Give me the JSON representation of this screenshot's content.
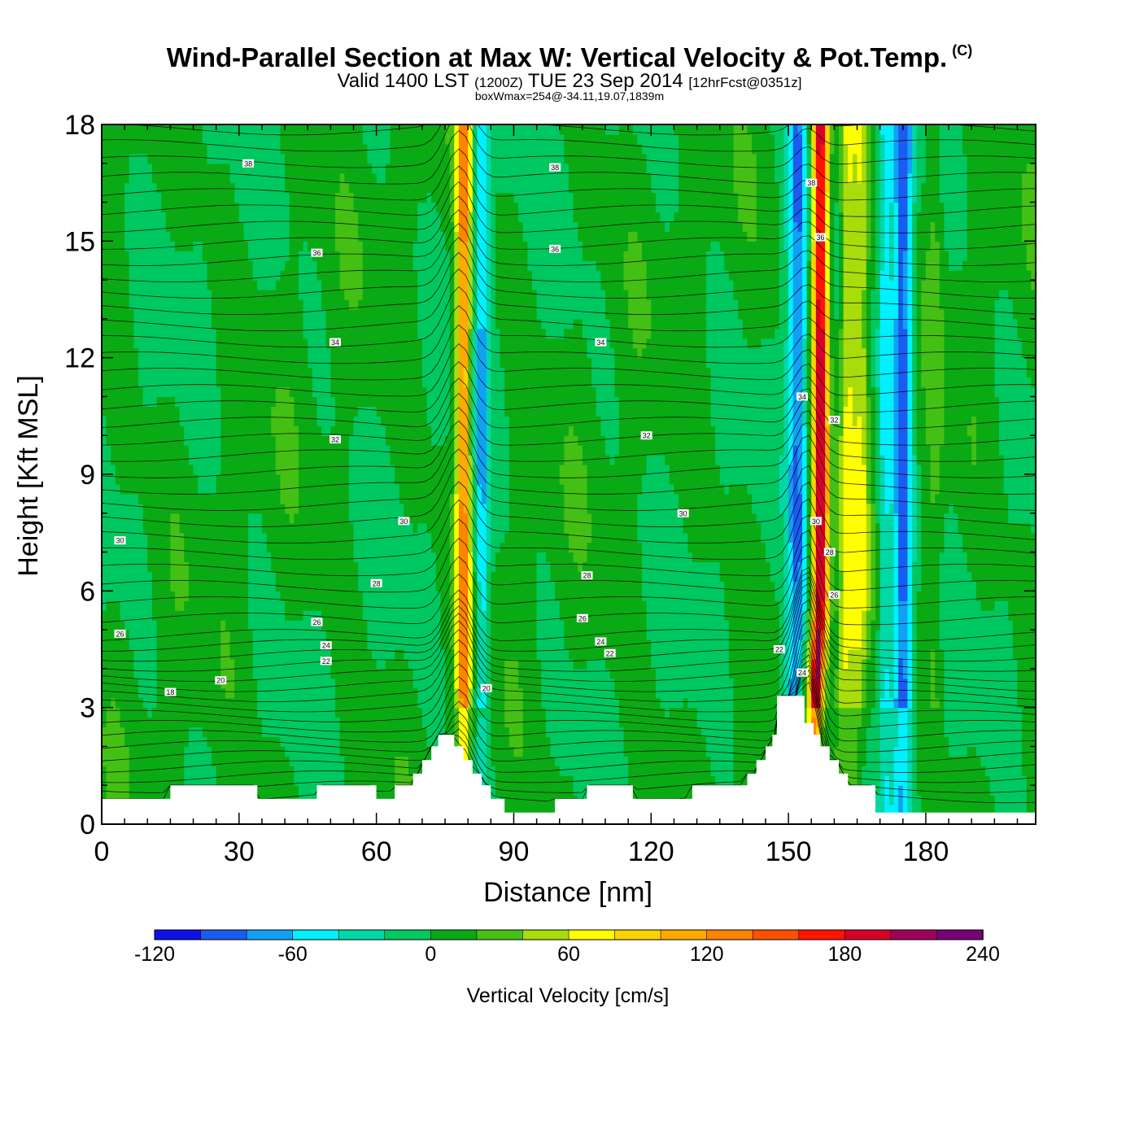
{
  "header": {
    "title": "Wind-Parallel Section at Max W: Vertical Velocity & Pot.Temp.",
    "copyright": "(C)",
    "valid_prefix": "Valid 1400 LST",
    "utc": "(1200Z)",
    "valid_date": "TUE 23 Sep 2014",
    "forecast": "[12hrFcst@0351z]",
    "boxinfo": "boxWmax=254@-34.11,19.07,1839m"
  },
  "chart_data": {
    "type": "heatmap",
    "xlabel": "Distance [nm]",
    "ylabel": "Height [Kft MSL]",
    "xlim": [
      0,
      204
    ],
    "ylim": [
      0,
      18
    ],
    "x_ticks": [
      0,
      30,
      60,
      90,
      120,
      150,
      180
    ],
    "y_ticks": [
      0,
      3,
      6,
      9,
      12,
      15,
      18
    ],
    "colorbar": {
      "label": "Vertical Velocity [cm/s]",
      "ticks": [
        -120,
        -60,
        0,
        60,
        120,
        180,
        240
      ],
      "levels": [
        -120,
        -100,
        -80,
        -60,
        -40,
        -20,
        0,
        20,
        40,
        60,
        80,
        100,
        120,
        140,
        160,
        180,
        200,
        220,
        240
      ],
      "colors": [
        "#1010e8",
        "#1a5cf0",
        "#12a0f5",
        "#00f0ff",
        "#00d8a8",
        "#00c860",
        "#0aaa14",
        "#44c014",
        "#a8dc0a",
        "#ffff00",
        "#ffd200",
        "#ffaa00",
        "#ff8200",
        "#ff5000",
        "#ff1400",
        "#d80028",
        "#a0005a",
        "#780078"
      ]
    },
    "terrain_kft": [
      [
        0,
        0.65
      ],
      [
        15,
        0.65
      ],
      [
        15,
        1.0
      ],
      [
        34,
        1.0
      ],
      [
        34,
        0.65
      ],
      [
        47,
        0.65
      ],
      [
        47,
        1.0
      ],
      [
        60,
        1.0
      ],
      [
        60,
        0.65
      ],
      [
        64,
        0.65
      ],
      [
        64,
        1.0
      ],
      [
        68,
        1.0
      ],
      [
        68,
        1.3
      ],
      [
        70,
        1.3
      ],
      [
        70,
        1.65
      ],
      [
        72,
        1.65
      ],
      [
        72,
        2.0
      ],
      [
        73.5,
        2.0
      ],
      [
        73.5,
        2.3
      ],
      [
        77,
        2.3
      ],
      [
        77,
        2.0
      ],
      [
        79,
        2.0
      ],
      [
        79,
        1.65
      ],
      [
        81,
        1.65
      ],
      [
        81,
        1.3
      ],
      [
        83,
        1.3
      ],
      [
        83,
        1.0
      ],
      [
        85,
        1.0
      ],
      [
        85,
        0.65
      ],
      [
        88,
        0.65
      ],
      [
        88,
        0.3
      ],
      [
        99,
        0.3
      ],
      [
        99,
        0.65
      ],
      [
        106,
        0.65
      ],
      [
        106,
        1.0
      ],
      [
        116,
        1.0
      ],
      [
        116,
        0.65
      ],
      [
        129,
        0.65
      ],
      [
        129,
        1.0
      ],
      [
        141,
        1.0
      ],
      [
        141,
        1.3
      ],
      [
        143,
        1.3
      ],
      [
        143,
        1.65
      ],
      [
        145,
        1.65
      ],
      [
        145,
        2.0
      ],
      [
        146.5,
        2.0
      ],
      [
        146.5,
        2.3
      ],
      [
        147.5,
        2.3
      ],
      [
        147.5,
        3.3
      ],
      [
        153.5,
        3.3
      ],
      [
        153.5,
        2.6
      ],
      [
        155.5,
        2.6
      ],
      [
        155.5,
        2.3
      ],
      [
        157,
        2.3
      ],
      [
        157,
        2.0
      ],
      [
        159,
        2.0
      ],
      [
        159,
        1.65
      ],
      [
        161,
        1.65
      ],
      [
        161,
        1.3
      ],
      [
        163,
        1.3
      ],
      [
        163,
        1.0
      ],
      [
        169,
        1.0
      ],
      [
        169,
        0.3
      ],
      [
        204,
        0.3
      ]
    ],
    "w_features": [
      {
        "x": 79,
        "w": 1.6,
        "amp": 120
      },
      {
        "x": 83,
        "w": 1.6,
        "amp": -60
      },
      {
        "x": 152,
        "w": 2.2,
        "amp": -85
      },
      {
        "x": 157,
        "w": 1.7,
        "amp": 200
      },
      {
        "x": 163,
        "w": 1.9,
        "amp": 60
      },
      {
        "x": 166,
        "w": 1.6,
        "amp": 45
      },
      {
        "x": 171,
        "w": 1.5,
        "amp": -45
      },
      {
        "x": 175,
        "w": 2.2,
        "amp": -95
      },
      {
        "x": 182,
        "w": 1.6,
        "amp": 20
      }
    ],
    "isentrope_labels": [
      {
        "x": 32,
        "y": 17.0,
        "text": "38"
      },
      {
        "x": 99,
        "y": 16.9,
        "text": "38"
      },
      {
        "x": 155,
        "y": 16.5,
        "text": "38"
      },
      {
        "x": 47,
        "y": 14.7,
        "text": "36"
      },
      {
        "x": 99,
        "y": 14.8,
        "text": "36"
      },
      {
        "x": 157,
        "y": 15.1,
        "text": "36"
      },
      {
        "x": 51,
        "y": 12.4,
        "text": "34"
      },
      {
        "x": 109,
        "y": 12.4,
        "text": "34"
      },
      {
        "x": 153,
        "y": 11.0,
        "text": "34"
      },
      {
        "x": 51,
        "y": 9.9,
        "text": "32"
      },
      {
        "x": 119,
        "y": 10.0,
        "text": "32"
      },
      {
        "x": 160,
        "y": 10.4,
        "text": "32"
      },
      {
        "x": 4,
        "y": 7.3,
        "text": "30"
      },
      {
        "x": 66,
        "y": 7.8,
        "text": "30"
      },
      {
        "x": 127,
        "y": 8.0,
        "text": "30"
      },
      {
        "x": 156,
        "y": 7.8,
        "text": "30"
      },
      {
        "x": 60,
        "y": 6.2,
        "text": "28"
      },
      {
        "x": 106,
        "y": 6.4,
        "text": "28"
      },
      {
        "x": 159,
        "y": 7.0,
        "text": "28"
      },
      {
        "x": 4,
        "y": 4.9,
        "text": "26"
      },
      {
        "x": 47,
        "y": 5.2,
        "text": "26"
      },
      {
        "x": 105,
        "y": 5.3,
        "text": "26"
      },
      {
        "x": 160,
        "y": 5.9,
        "text": "26"
      },
      {
        "x": 49,
        "y": 4.6,
        "text": "24"
      },
      {
        "x": 109,
        "y": 4.7,
        "text": "24"
      },
      {
        "x": 153,
        "y": 3.9,
        "text": "24"
      },
      {
        "x": 49,
        "y": 4.2,
        "text": "22"
      },
      {
        "x": 111,
        "y": 4.4,
        "text": "22"
      },
      {
        "x": 148,
        "y": 4.5,
        "text": "22"
      },
      {
        "x": 26,
        "y": 3.7,
        "text": "20"
      },
      {
        "x": 84,
        "y": 3.5,
        "text": "20"
      },
      {
        "x": 15,
        "y": 3.4,
        "text": "18"
      }
    ]
  }
}
